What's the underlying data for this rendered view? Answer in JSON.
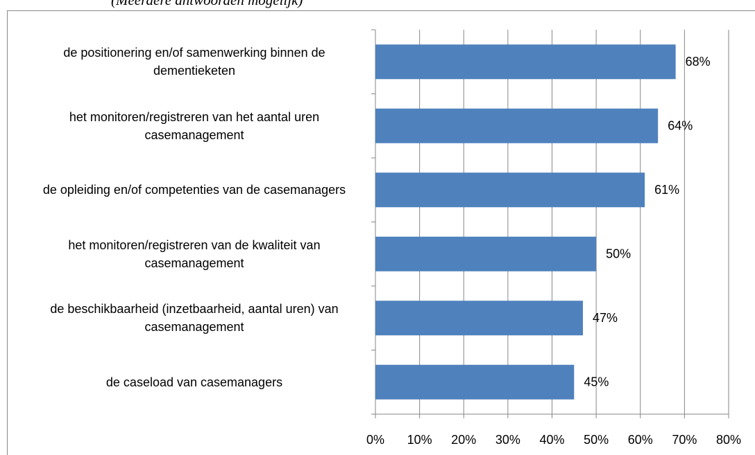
{
  "chart_data": {
    "type": "bar",
    "orientation": "horizontal",
    "subtitle": "(Meerdere antwoorden mogelijk)",
    "categories": [
      "de positionering en/of samenwerking binnen de dementieketen",
      "het monitoren/registreren van het aantal uren casemanagement",
      "de opleiding en/of competenties van de casemanagers",
      "het monitoren/registreren van de kwaliteit van casemanagement",
      "de beschikbaarheid (inzetbaarheid, aantal uren) van casemanagement",
      "de caseload van casemanagers"
    ],
    "values": [
      68,
      64,
      61,
      50,
      47,
      45
    ],
    "value_labels": [
      "68%",
      "64%",
      "61%",
      "50%",
      "47%",
      "45%"
    ],
    "color": "#4f81bd",
    "xlim": [
      0,
      80
    ],
    "xticks": [
      {
        "value": 0,
        "label": "0%"
      },
      {
        "value": 10,
        "label": "10%"
      },
      {
        "value": 20,
        "label": "20%"
      },
      {
        "value": 30,
        "label": "30%"
      },
      {
        "value": 40,
        "label": "40%"
      },
      {
        "value": 50,
        "label": "50%"
      },
      {
        "value": 60,
        "label": "60%"
      },
      {
        "value": 70,
        "label": "70%"
      },
      {
        "value": 80,
        "label": "80%"
      }
    ],
    "grid": true
  }
}
